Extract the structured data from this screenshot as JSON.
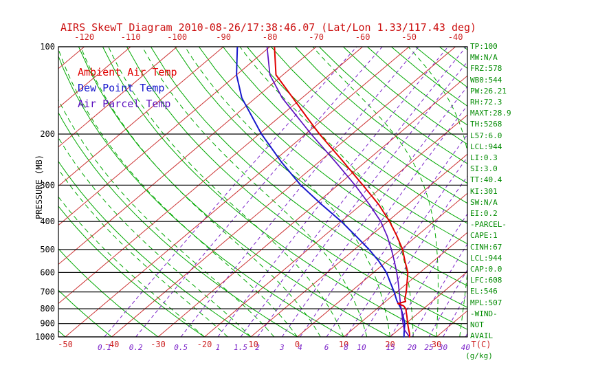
{
  "chart_data": {
    "type": "line",
    "variant": "skew-t-log-p",
    "title": "AIRS SkewT Diagram 2010-08-26/17:38:46.07 (Lat/Lon 1.33/117.43 deg)",
    "title_color": "#cc1111",
    "pressure_range_mb": [
      100,
      1000
    ],
    "surface_temp_range_c": [
      -51.5,
      36.7
    ],
    "grid": true,
    "legend_position": "top-left-inside",
    "axes": {
      "pressure": {
        "label": "PRESSURE (MB)",
        "scale": "log",
        "ticks_mb": [
          100,
          200,
          300,
          400,
          500,
          600,
          700,
          800,
          900,
          1000
        ],
        "color": "#000000"
      },
      "temperature": {
        "label": "T(C)",
        "top_tick_labels_c": [
          -120,
          -110,
          -100,
          -90,
          -80,
          -70,
          -60,
          -50,
          -40
        ],
        "bottom_tick_labels_c": [
          -50,
          -40,
          -30,
          -20,
          -10,
          0,
          10,
          20,
          30
        ],
        "skew": "isotherms slope up-right ~45deg",
        "color": "#cc2222"
      },
      "mixing_ratio": {
        "label": "(g/kg)",
        "label_color": "#008a00",
        "tick_values_gkg": [
          0.1,
          0.2,
          0.5,
          1,
          1.5,
          2,
          3,
          4,
          6,
          8,
          10,
          15,
          20,
          25,
          30,
          40
        ],
        "color": "#7b22c9"
      }
    },
    "series": [
      {
        "id": "ambient-air-temp",
        "name": "Ambient Air Temp",
        "color": "#e00000",
        "points_p_t": [
          [
            1004,
            24.4
          ],
          [
            1000,
            24.2
          ],
          [
            975,
            23.4
          ],
          [
            950,
            22.4
          ],
          [
            925,
            21.4
          ],
          [
            900,
            20.4
          ],
          [
            850,
            18.4
          ],
          [
            800,
            16.2
          ],
          [
            782,
            15.0
          ],
          [
            768,
            13.2
          ],
          [
            755,
            14.3
          ],
          [
            740,
            13.5
          ],
          [
            700,
            12.0
          ],
          [
            650,
            9.8
          ],
          [
            600,
            7.4
          ],
          [
            550,
            4.0
          ],
          [
            500,
            0.4
          ],
          [
            450,
            -4.2
          ],
          [
            400,
            -9.6
          ],
          [
            350,
            -16.2
          ],
          [
            300,
            -24.6
          ],
          [
            250,
            -34.6
          ],
          [
            200,
            -47.0
          ],
          [
            175,
            -54.0
          ],
          [
            150,
            -62.0
          ],
          [
            125,
            -71.5
          ],
          [
            100,
            -79.0
          ]
        ]
      },
      {
        "id": "dew-point-temp",
        "name": "Dew Point Temp",
        "color": "#1717cc",
        "points_p_t": [
          [
            1004,
            23.2
          ],
          [
            1000,
            23.0
          ],
          [
            975,
            22.2
          ],
          [
            950,
            21.4
          ],
          [
            925,
            20.6
          ],
          [
            900,
            19.8
          ],
          [
            850,
            17.6
          ],
          [
            800,
            15.2
          ],
          [
            750,
            12.2
          ],
          [
            700,
            9.4
          ],
          [
            650,
            6.2
          ],
          [
            600,
            2.8
          ],
          [
            550,
            -1.6
          ],
          [
            500,
            -6.8
          ],
          [
            450,
            -13.0
          ],
          [
            400,
            -20.0
          ],
          [
            350,
            -28.5
          ],
          [
            300,
            -38.0
          ],
          [
            250,
            -48.0
          ],
          [
            200,
            -59.5
          ],
          [
            150,
            -73.0
          ],
          [
            125,
            -80.0
          ],
          [
            100,
            -87.0
          ]
        ]
      },
      {
        "id": "air-parcel-temp",
        "name": "Air Parcel Temp",
        "color": "#5b0fbf",
        "points_p_t": [
          [
            1004,
            24.4
          ],
          [
            944,
            21.2
          ],
          [
            900,
            19.4
          ],
          [
            850,
            17.4
          ],
          [
            800,
            15.2
          ],
          [
            750,
            12.9
          ],
          [
            700,
            10.5
          ],
          [
            650,
            7.9
          ],
          [
            600,
            5.0
          ],
          [
            550,
            1.7
          ],
          [
            500,
            -2.0
          ],
          [
            450,
            -6.3
          ],
          [
            400,
            -11.5
          ],
          [
            350,
            -18.2
          ],
          [
            300,
            -26.3
          ],
          [
            250,
            -36.3
          ],
          [
            200,
            -48.8
          ],
          [
            150,
            -64.3
          ],
          [
            125,
            -72.8
          ],
          [
            100,
            -80.6
          ]
        ]
      }
    ],
    "background_lines": {
      "isotherms_c": {
        "from": -120,
        "to": 30,
        "step": 10,
        "color": "#cc3333",
        "style": "solid"
      },
      "dry_adiabats_c": {
        "from": -50,
        "to": 180,
        "step": 10,
        "color": "#00a800",
        "style": "solid"
      },
      "moist_adiabats_c": {
        "from": -20,
        "to": 40,
        "step": 5,
        "color": "#00a800",
        "style": "dashed"
      },
      "mixing_ratio_gkg": {
        "values": [
          0.1,
          0.2,
          0.5,
          1,
          1.5,
          2,
          3,
          4,
          6,
          8,
          10,
          15,
          20,
          25,
          30,
          40
        ],
        "color": "#7b22c9",
        "style": "dashed"
      },
      "pressure_lines_mb": {
        "from": 100,
        "to": 1000,
        "step": 100,
        "color": "#000000",
        "style": "solid"
      }
    }
  },
  "stats_panel": {
    "color": "#008a00",
    "lines": [
      "TP:100",
      "MW:N/A",
      "FRZ:578",
      "WB0:544",
      "PW:26.21",
      "RH:72.3",
      "MAXT:28.9",
      "TH:5268",
      "L57:6.0",
      "LCL:944",
      "LI:0.3",
      "SI:3.0",
      "TT:40.4",
      "KI:301",
      "SW:N/A",
      "EI:0.2",
      "-PARCEL-",
      "CAPE:1",
      "CINH:67",
      "LCL:944",
      "CAP:0.0",
      "LFC:608",
      "EL:546",
      "MPL:507",
      "-WIND-",
      "NOT",
      "AVAIL"
    ]
  }
}
